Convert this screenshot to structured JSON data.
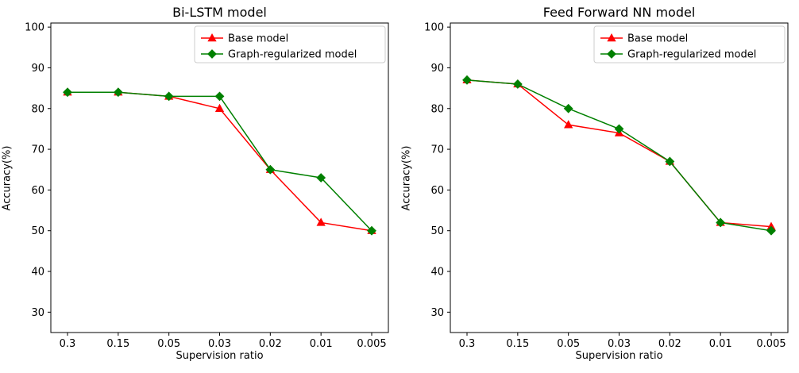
{
  "figure": {
    "background": "#ffffff",
    "axes_color": "#000000",
    "legend_border_color": "#cccccc"
  },
  "chart_data": [
    {
      "type": "line",
      "title": "Bi-LSTM model",
      "xlabel": "Supervision ratio",
      "ylabel": "Accuracy(%)",
      "categories": [
        "0.3",
        "0.15",
        "0.05",
        "0.03",
        "0.02",
        "0.01",
        "0.005"
      ],
      "ylim": [
        25,
        101
      ],
      "yticks": [
        30,
        40,
        50,
        60,
        70,
        80,
        90,
        100
      ],
      "grid": false,
      "legend_position": "upper right",
      "series": [
        {
          "name": "Base model",
          "color": "#ff0000",
          "marker": "triangle",
          "values": [
            84,
            84,
            83,
            80,
            65,
            52,
            50
          ]
        },
        {
          "name": "Graph-regularized model",
          "color": "#008000",
          "marker": "diamond",
          "values": [
            84,
            84,
            83,
            83,
            65,
            63,
            50
          ]
        }
      ]
    },
    {
      "type": "line",
      "title": "Feed Forward NN model",
      "xlabel": "Supervision ratio",
      "ylabel": "Accuracy(%)",
      "categories": [
        "0.3",
        "0.15",
        "0.05",
        "0.03",
        "0.02",
        "0.01",
        "0.005"
      ],
      "ylim": [
        25,
        101
      ],
      "yticks": [
        30,
        40,
        50,
        60,
        70,
        80,
        90,
        100
      ],
      "grid": false,
      "legend_position": "upper right",
      "series": [
        {
          "name": "Base model",
          "color": "#ff0000",
          "marker": "triangle",
          "values": [
            87,
            86,
            76,
            74,
            67,
            52,
            51
          ]
        },
        {
          "name": "Graph-regularized model",
          "color": "#008000",
          "marker": "diamond",
          "values": [
            87,
            86,
            80,
            75,
            67,
            52,
            50
          ]
        }
      ]
    }
  ]
}
